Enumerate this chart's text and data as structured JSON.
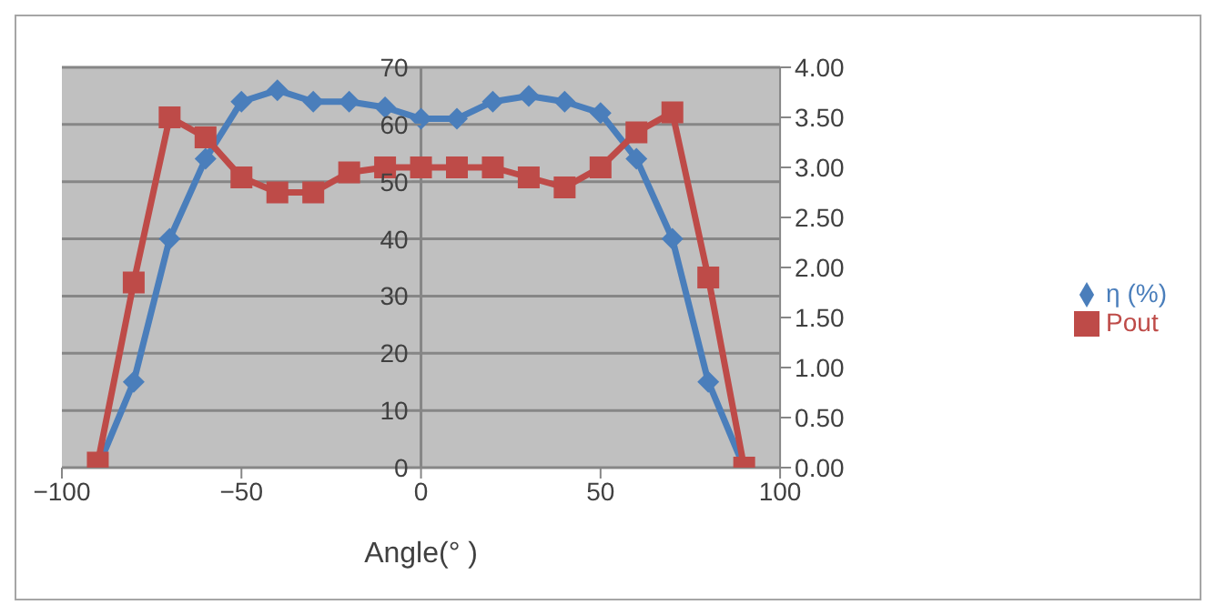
{
  "chart_data": {
    "type": "line",
    "xlabel": "Angle(°  )",
    "x": [
      -90,
      -80,
      -70,
      -60,
      -50,
      -40,
      -30,
      -20,
      -10,
      0,
      10,
      20,
      30,
      40,
      50,
      60,
      70,
      80,
      90
    ],
    "series": [
      {
        "name": "η (%)",
        "color": "#4a7ebb",
        "marker": "diamond",
        "values": [
          0,
          15,
          40,
          54,
          64,
          66,
          64,
          64,
          63,
          61,
          61,
          64,
          65,
          64,
          62,
          54,
          40,
          15,
          0
        ]
      },
      {
        "name": "Pout",
        "color": "#be4b48",
        "marker": "square",
        "axis": "y2",
        "values": [
          0.05,
          1.85,
          3.5,
          3.3,
          2.9,
          2.75,
          2.75,
          2.95,
          3.0,
          3.0,
          3.0,
          3.0,
          2.9,
          2.8,
          3.0,
          3.35,
          3.55,
          1.9,
          0
        ]
      }
    ],
    "xlim": [
      -100,
      100
    ],
    "xticks": [
      -100,
      -50,
      0,
      50,
      100
    ],
    "ylim": [
      0,
      70
    ],
    "yticks": [
      0,
      10,
      20,
      30,
      40,
      50,
      60,
      70
    ],
    "y2lim": [
      0,
      4
    ],
    "y2ticks": [
      {
        "value": 0,
        "label": "0.00"
      },
      {
        "value": 0.5,
        "label": "0.50"
      },
      {
        "value": 1,
        "label": "1.00"
      },
      {
        "value": 1.5,
        "label": "1.50"
      },
      {
        "value": 2,
        "label": "2.00"
      },
      {
        "value": 2.5,
        "label": "2.50"
      },
      {
        "value": 3,
        "label": "3.00"
      },
      {
        "value": 3.5,
        "label": "3.50"
      },
      {
        "value": 4,
        "label": "4.00"
      }
    ],
    "grid": "y",
    "legend": "right"
  }
}
